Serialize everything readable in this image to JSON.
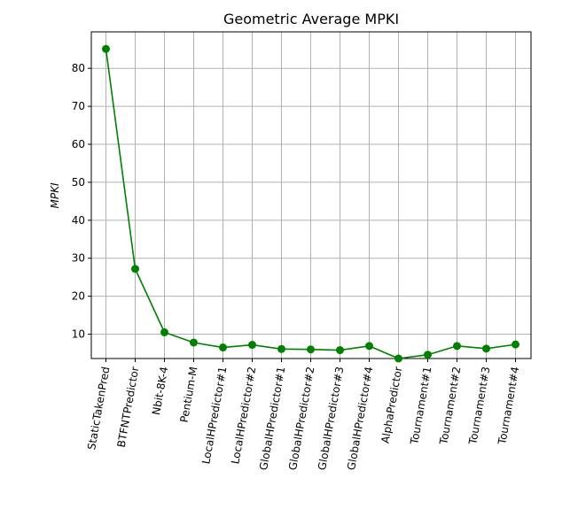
{
  "chart_data": {
    "type": "line",
    "title": "Geometric Average MPKI",
    "xlabel": "",
    "ylabel": "MPKI",
    "categories": [
      "StaticTakenPred",
      "BTFNTPredictor",
      "Nbit-8K-4",
      "Pentium-M",
      "LocalHPredictor#1",
      "LocalHPredictor#2",
      "GlobalHPredictor#1",
      "GlobalHPredictor#2",
      "GlobalHPredictor#3",
      "GlobalHPredictor#4",
      "AlphaPredictor",
      "Tournament#1",
      "Tournament#2",
      "Tournament#3",
      "Tournament#4"
    ],
    "series": [
      {
        "values": [
          85.1,
          27.2,
          10.5,
          7.8,
          6.5,
          7.2,
          6.1,
          6.0,
          5.8,
          6.9,
          3.6,
          4.6,
          6.9,
          6.2,
          7.3
        ],
        "color": "#008000",
        "marker": "circle"
      }
    ],
    "ylim": [
      3.6,
      89.6
    ],
    "yticks": [
      10,
      20,
      30,
      40,
      50,
      60,
      70,
      80
    ],
    "grid": true,
    "legend": "none"
  }
}
